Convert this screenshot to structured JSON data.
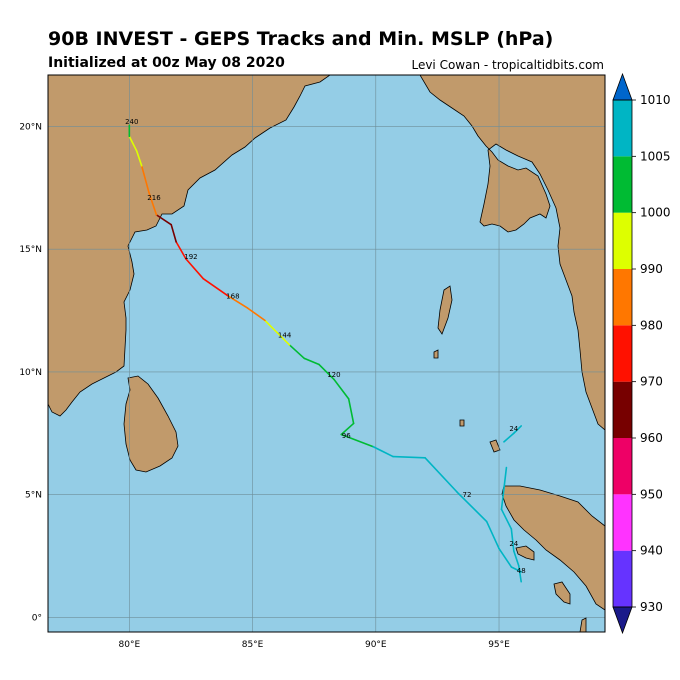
{
  "header": {
    "title": "90B INVEST - GEPS Tracks and Min. MSLP (hPa)",
    "subtitle": "Initialized at 00z May 08 2020",
    "credit": "Levi Cowan - tropicaltidbits.com"
  },
  "map": {
    "lon_range": [
      76.7,
      99.3
    ],
    "lat_range": [
      -0.6,
      22.1
    ],
    "lon_ticks": [
      {
        "v": 80,
        "label": "80°E"
      },
      {
        "v": 85,
        "label": "85°E"
      },
      {
        "v": 90,
        "label": "90°E"
      },
      {
        "v": 95,
        "label": "95°E"
      }
    ],
    "lat_ticks": [
      {
        "v": 0,
        "label": "0°"
      },
      {
        "v": 5,
        "label": "5°N"
      },
      {
        "v": 10,
        "label": "10°N"
      },
      {
        "v": 15,
        "label": "15°N"
      },
      {
        "v": 20,
        "label": "20°N"
      }
    ],
    "colors": {
      "ocean": "#94cde6",
      "land": "#c19a6b",
      "grid": "#6e8e99"
    }
  },
  "tracks": [
    {
      "name": "main",
      "points": [
        {
          "lon": 88.6,
          "lat": 7.45,
          "p": 1000
        },
        {
          "lon": 89.1,
          "lat": 7.9,
          "p": 1000
        },
        {
          "lon": 88.9,
          "lat": 8.9,
          "p": 1003
        },
        {
          "lon": 88.3,
          "lat": 9.7,
          "p": 1002
        },
        {
          "lon": 87.7,
          "lat": 10.3,
          "p": 1000
        },
        {
          "lon": 87.1,
          "lat": 10.55,
          "p": 1003
        },
        {
          "lon": 86.5,
          "lat": 11.1,
          "p": 1000
        },
        {
          "lon": 86.0,
          "lat": 11.6,
          "p": 999
        },
        {
          "lon": 85.5,
          "lat": 12.1,
          "p": 991
        },
        {
          "lon": 84.8,
          "lat": 12.6,
          "p": 987
        },
        {
          "lon": 84.0,
          "lat": 13.1,
          "p": 984
        },
        {
          "lon": 83.0,
          "lat": 13.8,
          "p": 978
        },
        {
          "lon": 82.3,
          "lat": 14.6,
          "p": 975
        },
        {
          "lon": 81.9,
          "lat": 15.3,
          "p": 972
        },
        {
          "lon": 81.7,
          "lat": 16.0,
          "p": 965
        },
        {
          "lon": 81.1,
          "lat": 16.4,
          "p": 968
        },
        {
          "lon": 80.8,
          "lat": 17.3,
          "p": 983
        },
        {
          "lon": 80.5,
          "lat": 18.4,
          "p": 987
        },
        {
          "lon": 80.3,
          "lat": 19.0,
          "p": 992
        },
        {
          "lon": 80.0,
          "lat": 19.6,
          "p": 998
        },
        {
          "lon": 80.0,
          "lat": 20.05,
          "p": 1000
        }
      ],
      "labels": [
        {
          "lon": 88.8,
          "lat": 7.3,
          "text": "96"
        },
        {
          "lon": 88.3,
          "lat": 9.8,
          "text": "120"
        },
        {
          "lon": 86.3,
          "lat": 11.4,
          "text": "144"
        },
        {
          "lon": 84.2,
          "lat": 13.0,
          "text": "168"
        },
        {
          "lon": 82.5,
          "lat": 14.6,
          "text": "192"
        },
        {
          "lon": 81.0,
          "lat": 17.0,
          "text": "216"
        },
        {
          "lon": 80.1,
          "lat": 20.1,
          "text": "240"
        }
      ]
    },
    {
      "name": "south",
      "points": [
        {
          "lon": 88.6,
          "lat": 7.45,
          "p": 1003
        },
        {
          "lon": 89.9,
          "lat": 6.95,
          "p": 1003
        },
        {
          "lon": 90.7,
          "lat": 6.55,
          "p": 1006
        },
        {
          "lon": 92.0,
          "lat": 6.5,
          "p": 1007
        },
        {
          "lon": 93.3,
          "lat": 5.1,
          "p": 1007
        },
        {
          "lon": 94.5,
          "lat": 3.9,
          "p": 1007
        },
        {
          "lon": 95.0,
          "lat": 2.8,
          "p": 1007
        },
        {
          "lon": 95.5,
          "lat": 2.05,
          "p": 1007
        },
        {
          "lon": 95.9,
          "lat": 1.85,
          "p": 1007
        }
      ],
      "labels": [
        {
          "lon": 93.7,
          "lat": 4.9,
          "text": "72"
        }
      ]
    },
    {
      "name": "east",
      "points": [
        {
          "lon": 95.2,
          "lat": 7.15,
          "p": 1007
        },
        {
          "lon": 95.6,
          "lat": 7.5,
          "p": 1007
        },
        {
          "lon": 95.9,
          "lat": 7.8,
          "p": 1007
        }
      ],
      "labels": [
        {
          "lon": 95.6,
          "lat": 7.6,
          "text": "24"
        }
      ]
    },
    {
      "name": "sumatra",
      "points": [
        {
          "lon": 95.3,
          "lat": 6.1,
          "p": 1007
        },
        {
          "lon": 95.1,
          "lat": 4.4,
          "p": 1007
        },
        {
          "lon": 95.5,
          "lat": 3.6,
          "p": 1007
        },
        {
          "lon": 95.6,
          "lat": 2.7,
          "p": 1007
        },
        {
          "lon": 95.8,
          "lat": 2.1,
          "p": 1007
        },
        {
          "lon": 95.9,
          "lat": 1.45,
          "p": 1007
        }
      ],
      "labels": [
        {
          "lon": 95.6,
          "lat": 2.9,
          "text": "24"
        },
        {
          "lon": 95.9,
          "lat": 1.8,
          "text": "48"
        }
      ]
    }
  ],
  "colorbar": {
    "levels": [
      930,
      940,
      950,
      960,
      970,
      980,
      990,
      1000,
      1005,
      1010
    ],
    "labels": [
      "1010",
      "1005",
      "1000",
      "990",
      "980",
      "970",
      "960",
      "950",
      "940",
      "930"
    ],
    "colors": [
      "#6633ff",
      "#ff33ff",
      "#ee0066",
      "#770000",
      "#ff1100",
      "#ff7700",
      "#ddff00",
      "#00bb33",
      "#00b5c4"
    ],
    "under_color": "#1a1a8a",
    "over_color": "#0066cc"
  }
}
